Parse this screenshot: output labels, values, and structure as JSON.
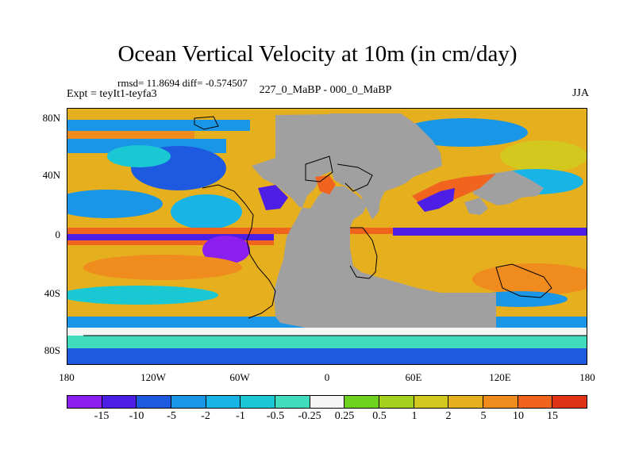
{
  "title": "Ocean Vertical Velocity at 10m (in cm/day)",
  "stats": "rmsd= 11.8694 diff= -0.574507",
  "expt": "Expt = teyIt1-teyfa3",
  "center_label": "227_0_MaBP - 000_0_MaBP",
  "season": "JJA",
  "y_axis_labels": [
    "80N",
    "40N",
    "0",
    "40S",
    "80S"
  ],
  "x_axis_labels": [
    "180",
    "120W",
    "60W",
    "0",
    "60E",
    "120E",
    "180"
  ],
  "colorbar": {
    "labels": [
      "-15",
      "-10",
      "-5",
      "-2",
      "-1",
      "-0.5",
      "-0.25",
      "0.25",
      "0.5",
      "1",
      "2",
      "5",
      "10",
      "15"
    ],
    "colors": [
      "#8a1ff0",
      "#4d1ee6",
      "#1e5ae0",
      "#1996e6",
      "#19b4e6",
      "#19c8d2",
      "#41dcbe",
      "#f5f5f5",
      "#6ed21e",
      "#a5d21e",
      "#d2c81e",
      "#e6af1e",
      "#f08c1e",
      "#f0641e",
      "#e03214"
    ]
  },
  "legend_colors": {
    "land": "#a0a0a0",
    "coastline": "#000000"
  }
}
